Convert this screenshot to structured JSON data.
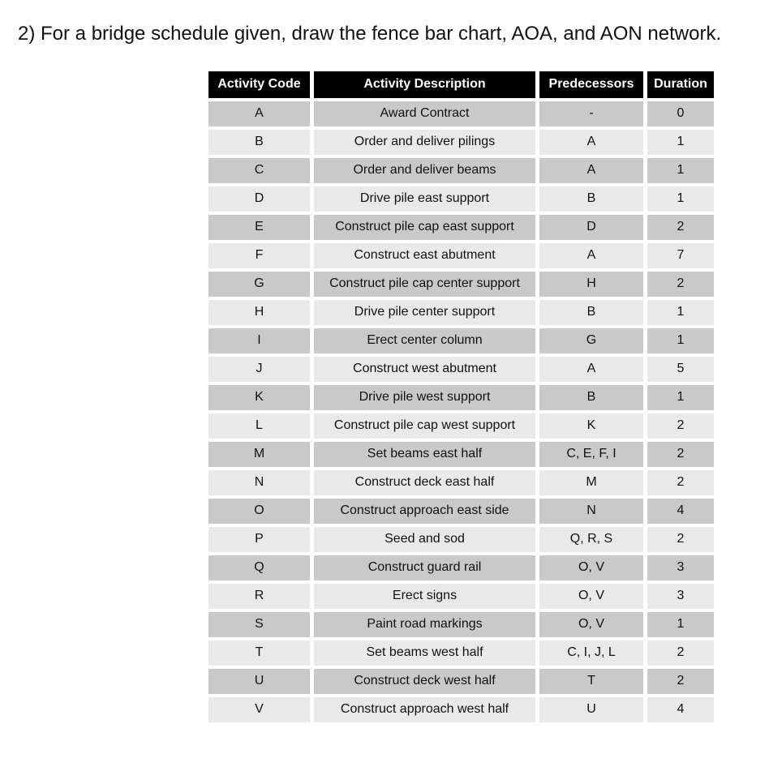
{
  "page": {
    "title": "2) For a bridge schedule given, draw the fence bar chart, AOA, and AON network."
  },
  "colors": {
    "page_bg": "#ffffff",
    "header_bg": "#000000",
    "header_text": "#ffffff",
    "row_dark": "#c9c9c9",
    "row_light": "#e9e9e9",
    "body_text": "#111111"
  },
  "table": {
    "headers": [
      "Activity Code",
      "Activity Description",
      "Predecessors",
      "Duration"
    ],
    "rows": [
      {
        "code": "A",
        "description": "Award Contract",
        "predecessors": "-",
        "duration": "0"
      },
      {
        "code": "B",
        "description": "Order and deliver pilings",
        "predecessors": "A",
        "duration": "1"
      },
      {
        "code": "C",
        "description": "Order and deliver beams",
        "predecessors": "A",
        "duration": "1"
      },
      {
        "code": "D",
        "description": "Drive pile east support",
        "predecessors": "B",
        "duration": "1"
      },
      {
        "code": "E",
        "description": "Construct pile cap east support",
        "predecessors": "D",
        "duration": "2"
      },
      {
        "code": "F",
        "description": "Construct east abutment",
        "predecessors": "A",
        "duration": "7"
      },
      {
        "code": "G",
        "description": "Construct pile cap center support",
        "predecessors": "H",
        "duration": "2"
      },
      {
        "code": "H",
        "description": "Drive pile center support",
        "predecessors": "B",
        "duration": "1"
      },
      {
        "code": "I",
        "description": "Erect center column",
        "predecessors": "G",
        "duration": "1"
      },
      {
        "code": "J",
        "description": "Construct west abutment",
        "predecessors": "A",
        "duration": "5"
      },
      {
        "code": "K",
        "description": "Drive pile west support",
        "predecessors": "B",
        "duration": "1"
      },
      {
        "code": "L",
        "description": "Construct pile cap west support",
        "predecessors": "K",
        "duration": "2"
      },
      {
        "code": "M",
        "description": "Set beams east half",
        "predecessors": "C, E, F, I",
        "duration": "2"
      },
      {
        "code": "N",
        "description": "Construct deck east half",
        "predecessors": "M",
        "duration": "2"
      },
      {
        "code": "O",
        "description": "Construct approach east side",
        "predecessors": "N",
        "duration": "4"
      },
      {
        "code": "P",
        "description": "Seed and sod",
        "predecessors": "Q, R, S",
        "duration": "2"
      },
      {
        "code": "Q",
        "description": "Construct guard rail",
        "predecessors": "O, V",
        "duration": "3"
      },
      {
        "code": "R",
        "description": "Erect signs",
        "predecessors": "O, V",
        "duration": "3"
      },
      {
        "code": "S",
        "description": "Paint road markings",
        "predecessors": "O, V",
        "duration": "1"
      },
      {
        "code": "T",
        "description": "Set beams west half",
        "predecessors": "C, I, J, L",
        "duration": "2"
      },
      {
        "code": "U",
        "description": "Construct deck west half",
        "predecessors": "T",
        "duration": "2"
      },
      {
        "code": "V",
        "description": "Construct approach west half",
        "predecessors": "U",
        "duration": "4"
      }
    ]
  }
}
